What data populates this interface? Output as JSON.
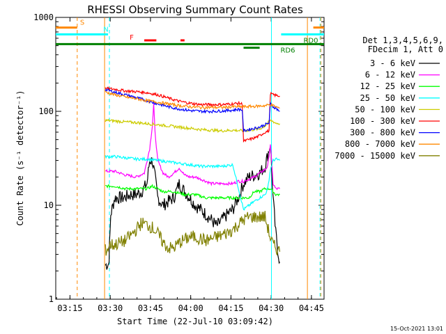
{
  "chart_data": {
    "type": "line",
    "title": "RHESSI Observing Summary Count Rates",
    "xlabel": "Start Time (22-Jul-10 03:09:42)",
    "ylabel": "Count Rate (s⁻¹ detector⁻¹)",
    "yscale": "log",
    "ylim": [
      1,
      1000
    ],
    "xlim_minutes": [
      0,
      100
    ],
    "x_ticks": [
      {
        "label": "03:15",
        "m": 5.3
      },
      {
        "label": "03:30",
        "m": 20.3
      },
      {
        "label": "03:45",
        "m": 35.3
      },
      {
        "label": "04:00",
        "m": 50.3
      },
      {
        "label": "04:15",
        "m": 65.3
      },
      {
        "label": "04:30",
        "m": 80.3
      },
      {
        "label": "04:45",
        "m": 95.3
      }
    ],
    "y_ticks": [
      {
        "label": "1",
        "v": 1
      },
      {
        "label": "10",
        "v": 10
      },
      {
        "label": "100",
        "v": 100
      },
      {
        "label": "1000",
        "v": 1000
      }
    ],
    "legend_header": [
      "Det 1,3,4,5,6,9,",
      "FDecim 1, Att 0"
    ],
    "series": [
      {
        "name": "3 - 6 keV",
        "color": "#000000",
        "x": [
          18.5,
          19.8,
          20.0,
          20.5,
          22,
          25,
          28,
          30,
          32,
          34,
          35,
          36,
          37,
          38,
          40,
          42,
          44,
          46,
          48,
          50,
          52,
          54,
          56,
          58,
          60,
          62,
          64,
          66,
          68,
          70,
          72,
          74,
          76,
          78,
          80,
          81,
          82,
          83,
          83.5
        ],
        "y": [
          2.3,
          2.4,
          3.5,
          8,
          12,
          12,
          13,
          13,
          14,
          17,
          30,
          30,
          20,
          12,
          10,
          11,
          12,
          17,
          14,
          12,
          10,
          9,
          8,
          7,
          6,
          7,
          8,
          9,
          12,
          17,
          20,
          21,
          22,
          26,
          45,
          12,
          5,
          3,
          2.5
        ]
      },
      {
        "name": "6 - 12 keV",
        "color": "#ff00ff",
        "x": [
          18.5,
          22,
          26,
          30,
          33,
          35,
          36,
          36.5,
          37,
          38,
          40,
          42,
          44,
          46,
          48,
          50,
          52,
          54,
          56,
          58,
          60,
          62,
          64,
          66,
          68,
          70,
          72,
          74,
          76,
          78,
          79,
          80,
          81,
          82,
          83,
          83.5
        ],
        "y": [
          23,
          23,
          21,
          20,
          22,
          40,
          70,
          120,
          60,
          30,
          22,
          20,
          22,
          25,
          21,
          20,
          20,
          19,
          18,
          17,
          17,
          17,
          17,
          17,
          18,
          18,
          19,
          20,
          22,
          24,
          26,
          45,
          17,
          15,
          15,
          15
        ]
      },
      {
        "name": "12 - 25 keV",
        "color": "#00ff00",
        "x": [
          18.5,
          22,
          26,
          30,
          34,
          36,
          38,
          40,
          44,
          48,
          52,
          56,
          60,
          64,
          68,
          72,
          74,
          76,
          78,
          80,
          81,
          82,
          83.5
        ],
        "y": [
          16,
          16,
          15,
          15,
          15,
          16,
          15,
          14,
          14,
          13,
          13,
          12,
          12,
          12,
          12,
          12,
          14,
          14,
          15,
          15,
          14,
          13,
          13
        ]
      },
      {
        "name": "25 - 50 keV",
        "color": "#00ffff",
        "x": [
          18.5,
          22,
          26,
          30,
          34,
          38,
          42,
          46,
          50,
          54,
          58,
          62,
          66,
          70,
          74,
          76,
          78,
          79,
          80,
          81,
          82,
          83.5
        ],
        "y": [
          33,
          33,
          32,
          31,
          31,
          30,
          29,
          28,
          27,
          26,
          26,
          26,
          27,
          9,
          11,
          12,
          13,
          15,
          24,
          30,
          31,
          30
        ]
      },
      {
        "name": "50 - 100 keV",
        "color": "#cccc00",
        "x": [
          18.5,
          22,
          26,
          30,
          34,
          38,
          42,
          46,
          50,
          54,
          58,
          62,
          66,
          70,
          74,
          76,
          78,
          80,
          81,
          82,
          83.5
        ],
        "y": [
          80,
          79,
          77,
          76,
          74,
          72,
          70,
          68,
          66,
          64,
          63,
          62,
          63,
          62,
          64,
          65,
          70,
          80,
          78,
          75,
          74
        ]
      },
      {
        "name": "100 - 300 keV",
        "color": "#ff0000",
        "x": [
          18.5,
          22,
          26,
          30,
          34,
          38,
          42,
          46,
          50,
          54,
          58,
          62,
          66,
          68,
          69.5,
          70,
          72,
          74,
          76,
          78,
          79.5,
          80,
          81,
          82,
          83.5
        ],
        "y": [
          175,
          172,
          165,
          162,
          158,
          150,
          138,
          128,
          122,
          118,
          118,
          118,
          120,
          122,
          120,
          48,
          50,
          52,
          55,
          60,
          62,
          155,
          150,
          148,
          145
        ]
      },
      {
        "name": "300 - 800 keV",
        "color": "#0000ff",
        "x": [
          18.5,
          22,
          26,
          30,
          34,
          38,
          42,
          46,
          50,
          54,
          58,
          62,
          66,
          68,
          69.5,
          70,
          72,
          74,
          76,
          78,
          79.5,
          80,
          81,
          82,
          83.5
        ],
        "y": [
          170,
          160,
          150,
          140,
          130,
          120,
          112,
          106,
          102,
          100,
          100,
          101,
          103,
          105,
          104,
          62,
          64,
          66,
          68,
          72,
          75,
          120,
          112,
          108,
          100
        ]
      },
      {
        "name": "800 - 7000 keV",
        "color": "#ff8800",
        "x": [
          18.5,
          22,
          26,
          30,
          34,
          38,
          42,
          46,
          50,
          54,
          58,
          62,
          66,
          70,
          74,
          78,
          80,
          81,
          82,
          83.5
        ],
        "y": [
          160,
          150,
          142,
          136,
          130,
          125,
          120,
          115,
          112,
          110,
          110,
          110,
          112,
          112,
          113,
          115,
          118,
          115,
          112,
          108
        ]
      },
      {
        "name": "7000 - 15000 keV",
        "color": "#808000",
        "x": [
          18.5,
          19.5,
          20,
          22,
          24,
          26,
          28,
          30,
          32,
          34,
          36,
          38,
          40,
          42,
          44,
          46,
          48,
          50,
          52,
          54,
          56,
          58,
          60,
          62,
          64,
          66,
          68,
          70,
          72,
          74,
          76,
          78,
          80,
          81,
          82,
          83.5
        ],
        "y": [
          3.3,
          3.5,
          3.8,
          3.8,
          4.0,
          4.2,
          4.8,
          5.5,
          6.5,
          6.2,
          5.8,
          5.0,
          4.0,
          3.5,
          3.5,
          4.0,
          4.3,
          4.6,
          4.6,
          4.4,
          4.2,
          4.4,
          4.6,
          4.8,
          5.1,
          5.5,
          6.2,
          7.0,
          7.5,
          7.5,
          7.5,
          7.5,
          4.5,
          3.8,
          3.5,
          3.2
        ]
      }
    ],
    "annotations": {
      "bars": [
        {
          "label": "S",
          "color": "#ff8800",
          "x0": 0,
          "x1": 8,
          "v": 780
        },
        {
          "label": "S",
          "color": "#ff8800",
          "x0": 96,
          "x1": 100,
          "v": 780
        },
        {
          "label": "N",
          "color": "#00ffff",
          "x0": 0,
          "x1": 19.5,
          "v": 660
        },
        {
          "label": "N",
          "color": "#00ffff",
          "x0": 84,
          "x1": 100,
          "v": 660
        },
        {
          "label": "F",
          "color": "#ff0000",
          "x0": 33,
          "x1": 37.5,
          "v": 570
        },
        {
          "label": "F",
          "color": "#ff0000",
          "x0": 46.5,
          "x1": 48,
          "v": 570
        },
        {
          "label": "RD0",
          "color": "#008000",
          "x0": 0,
          "x1": 100,
          "v": 520
        },
        {
          "label": "RD6",
          "color": "#008000",
          "x0": 70,
          "x1": 76,
          "v": 475
        }
      ],
      "vlines": [
        {
          "m": 8.0,
          "color": "#ff8800",
          "style": "dashed"
        },
        {
          "m": 18.2,
          "color": "#ff8800",
          "style": "solid"
        },
        {
          "m": 20.0,
          "color": "#00ffff",
          "style": "dashed"
        },
        {
          "m": 80.4,
          "color": "#00ffff",
          "style": "solid"
        },
        {
          "m": 93.8,
          "color": "#ff8800",
          "style": "solid"
        },
        {
          "m": 98.5,
          "color": "#00ffff",
          "style": "dashed"
        },
        {
          "m": 98.8,
          "color": "#ff8800",
          "style": "dashed"
        }
      ],
      "bar_labels": {
        "S": "S",
        "N": "N",
        "F": "F",
        "RD0": "RD0",
        "RD6": "RD6"
      }
    },
    "footer_date": "15-Oct-2021 13:01"
  }
}
